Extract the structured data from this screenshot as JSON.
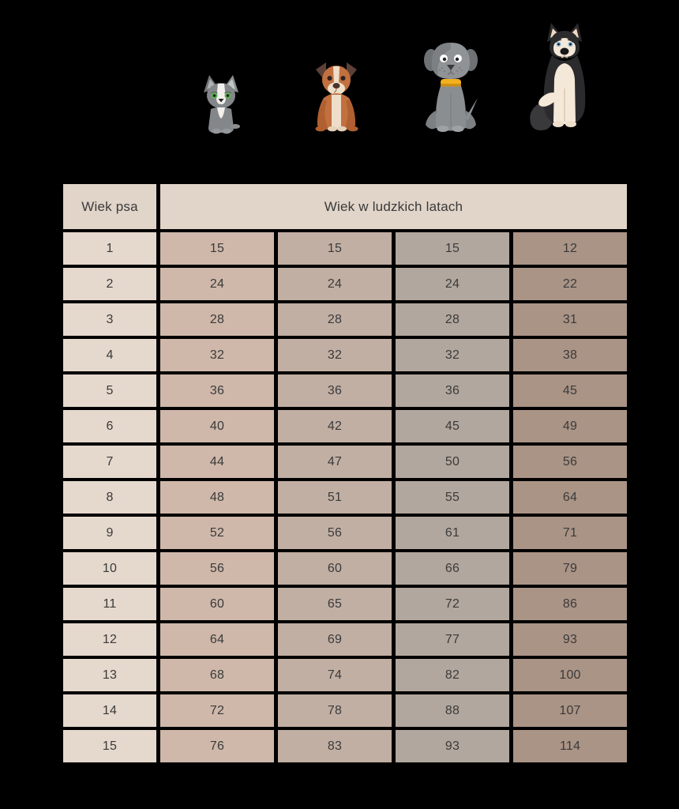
{
  "chart_data": {
    "type": "table",
    "header": {
      "dog_age": "Wiek psa",
      "human_years": "Wiek w ludzkich latach"
    },
    "dog_age": [
      1,
      2,
      3,
      4,
      5,
      6,
      7,
      8,
      9,
      10,
      11,
      12,
      13,
      14,
      15
    ],
    "series": [
      {
        "name": "small-dog",
        "icon": "small-dog-icon",
        "values": [
          15,
          24,
          28,
          32,
          36,
          40,
          44,
          48,
          52,
          56,
          60,
          64,
          68,
          72,
          76
        ]
      },
      {
        "name": "medium-dog",
        "icon": "medium-dog-icon",
        "values": [
          15,
          24,
          28,
          32,
          36,
          42,
          47,
          51,
          56,
          60,
          65,
          69,
          74,
          78,
          83
        ]
      },
      {
        "name": "large-dog",
        "icon": "large-dog-icon",
        "values": [
          15,
          24,
          28,
          32,
          36,
          45,
          50,
          55,
          61,
          66,
          72,
          77,
          82,
          88,
          93
        ]
      },
      {
        "name": "giant-dog",
        "icon": "giant-dog-icon",
        "values": [
          12,
          22,
          31,
          38,
          45,
          49,
          56,
          64,
          71,
          79,
          86,
          93,
          100,
          107,
          114
        ]
      }
    ],
    "layout": {
      "grid": "off",
      "legend": "dog illustrations above value columns"
    }
  },
  "icons": [
    "small-dog-icon",
    "medium-dog-icon",
    "large-dog-icon",
    "giant-dog-icon"
  ],
  "colors": {
    "background": "#000000",
    "header_bg": "#e1d4c9",
    "dog_age_col_bg": "#e5d8cd",
    "small_col_bg": "#cfb8aa",
    "medium_col_bg": "#c1afa3",
    "large_col_bg": "#b2a79e",
    "giant_col_bg": "#aa9486",
    "text": "#3a3a3a"
  }
}
